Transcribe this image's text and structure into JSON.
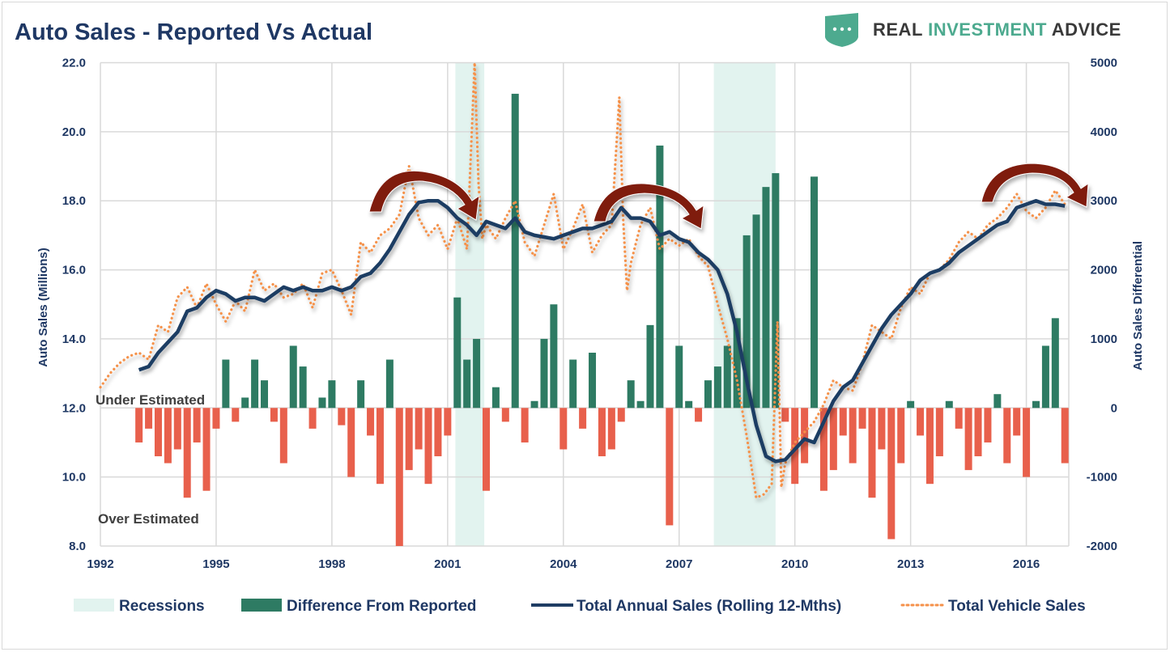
{
  "title": "Auto Sales - Reported Vs Actual",
  "logo": {
    "part1": "REAL ",
    "part2": "INVESTMENT",
    "part3": " ADVICE",
    "accent": "#4daa8f",
    "dark": "#3a3a3a"
  },
  "colors": {
    "recession": "#e2f3ef",
    "diff_pos": "#2e7b63",
    "diff_neg": "#e8604c",
    "annual": "#1f3d63",
    "vehicle": "#f5914a",
    "arrow": "#7f1a10",
    "axis_text": "#1f3864"
  },
  "annotations": {
    "under": "Under Estimated",
    "over": "Over Estimated"
  },
  "chart_data": {
    "type": "bar+line",
    "title": "Auto Sales - Reported Vs Actual",
    "xlabel": "",
    "ylabel": "Auto Sales (Millions)",
    "y2label": "Auto Sales Differential",
    "xlim": [
      1992,
      2017.1
    ],
    "ylim": [
      8,
      22
    ],
    "y2lim": [
      -2000,
      5000
    ],
    "x_ticks": [
      "1992",
      "1995",
      "1998",
      "2001",
      "2004",
      "2007",
      "2010",
      "2013",
      "2016"
    ],
    "y_ticks": [
      "8.0",
      "10.0",
      "12.0",
      "14.0",
      "16.0",
      "18.0",
      "20.0",
      "22.0"
    ],
    "y2_ticks": [
      "-2000",
      "-1000",
      "0",
      "1000",
      "2000",
      "3000",
      "4000",
      "5000"
    ],
    "grid": true,
    "legend_position": "bottom",
    "legend": [
      "Recessions",
      "Difference From Reported",
      "Total Annual Sales (Rolling 12-Mths)",
      "Total Vehicle Sales"
    ],
    "recessions": [
      [
        2001.2,
        2001.95
      ],
      [
        2007.9,
        2009.5
      ]
    ],
    "difference": {
      "name": "Difference From Reported",
      "axis": "right",
      "x": [
        1993.0,
        1993.25,
        1993.5,
        1993.75,
        1994.0,
        1994.25,
        1994.5,
        1994.75,
        1995.0,
        1995.25,
        1995.5,
        1995.75,
        1996.0,
        1996.25,
        1996.5,
        1996.75,
        1997.0,
        1997.25,
        1997.5,
        1997.75,
        1998.0,
        1998.25,
        1998.5,
        1998.75,
        1999.0,
        1999.25,
        1999.5,
        1999.75,
        2000.0,
        2000.25,
        2000.5,
        2000.75,
        2001.0,
        2001.25,
        2001.5,
        2001.75,
        2002.0,
        2002.25,
        2002.5,
        2002.75,
        2003.0,
        2003.25,
        2003.5,
        2003.75,
        2004.0,
        2004.25,
        2004.5,
        2004.75,
        2005.0,
        2005.25,
        2005.5,
        2005.75,
        2006.0,
        2006.25,
        2006.5,
        2006.75,
        2007.0,
        2007.25,
        2007.5,
        2007.75,
        2008.0,
        2008.25,
        2008.5,
        2008.75,
        2009.0,
        2009.25,
        2009.5,
        2009.75,
        2010.0,
        2010.25,
        2010.5,
        2010.75,
        2011.0,
        2011.25,
        2011.5,
        2011.75,
        2012.0,
        2012.25,
        2012.5,
        2012.75,
        2013.0,
        2013.25,
        2013.5,
        2013.75,
        2014.0,
        2014.25,
        2014.5,
        2014.75,
        2015.0,
        2015.25,
        2015.5,
        2015.75,
        2016.0,
        2016.25,
        2016.5,
        2016.75,
        2017.0
      ],
      "values": [
        -500,
        -300,
        -700,
        -800,
        -600,
        -1300,
        -500,
        -1200,
        -300,
        700,
        -200,
        150,
        700,
        400,
        -200,
        -800,
        900,
        600,
        -300,
        150,
        400,
        -250,
        -1000,
        400,
        -400,
        -1100,
        700,
        -2000,
        -900,
        -600,
        -1100,
        -700,
        -400,
        1600,
        700,
        1000,
        -1200,
        300,
        -200,
        4550,
        -500,
        100,
        1000,
        1500,
        -600,
        700,
        -300,
        800,
        -700,
        -600,
        -200,
        400,
        100,
        1200,
        3800,
        -1700,
        900,
        100,
        -200,
        400,
        600,
        900,
        1300,
        2500,
        2800,
        3200,
        3400,
        -200,
        -1100,
        -800,
        3350,
        -1200,
        -900,
        -400,
        -800,
        -300,
        -1300,
        -600,
        -1900,
        -800,
        100,
        -400,
        -1100,
        -700,
        100,
        -300,
        -900,
        -700,
        -500,
        200,
        -800,
        -400,
        -1000,
        100,
        900,
        1300,
        -800
      ]
    },
    "annual": {
      "name": "Total Annual Sales (Rolling 12-Mths)",
      "axis": "left",
      "x": [
        1993.0,
        1993.25,
        1993.5,
        1993.75,
        1994.0,
        1994.25,
        1994.5,
        1994.75,
        1995.0,
        1995.25,
        1995.5,
        1995.75,
        1996.0,
        1996.25,
        1996.5,
        1996.75,
        1997.0,
        1997.25,
        1997.5,
        1997.75,
        1998.0,
        1998.25,
        1998.5,
        1998.75,
        1999.0,
        1999.25,
        1999.5,
        1999.75,
        2000.0,
        2000.25,
        2000.5,
        2000.75,
        2001.0,
        2001.25,
        2001.5,
        2001.75,
        2002.0,
        2002.25,
        2002.5,
        2002.75,
        2003.0,
        2003.25,
        2003.5,
        2003.75,
        2004.0,
        2004.25,
        2004.5,
        2004.75,
        2005.0,
        2005.25,
        2005.5,
        2005.75,
        2006.0,
        2006.25,
        2006.5,
        2006.75,
        2007.0,
        2007.25,
        2007.5,
        2007.75,
        2008.0,
        2008.25,
        2008.5,
        2008.75,
        2009.0,
        2009.25,
        2009.5,
        2009.75,
        2010.0,
        2010.25,
        2010.5,
        2010.75,
        2011.0,
        2011.25,
        2011.5,
        2011.75,
        2012.0,
        2012.25,
        2012.5,
        2012.75,
        2013.0,
        2013.25,
        2013.5,
        2013.75,
        2014.0,
        2014.25,
        2014.5,
        2014.75,
        2015.0,
        2015.25,
        2015.5,
        2015.75,
        2016.0,
        2016.25,
        2016.5,
        2016.75,
        2017.0
      ],
      "values": [
        13.1,
        13.2,
        13.6,
        13.9,
        14.2,
        14.8,
        14.9,
        15.2,
        15.4,
        15.3,
        15.1,
        15.2,
        15.2,
        15.1,
        15.3,
        15.5,
        15.4,
        15.5,
        15.4,
        15.4,
        15.5,
        15.4,
        15.5,
        15.8,
        15.9,
        16.2,
        16.6,
        17.1,
        17.6,
        17.95,
        18.0,
        18.0,
        17.8,
        17.5,
        17.3,
        17.0,
        17.4,
        17.3,
        17.2,
        17.5,
        17.1,
        17.0,
        16.95,
        16.9,
        17.0,
        17.1,
        17.2,
        17.2,
        17.3,
        17.4,
        17.8,
        17.5,
        17.5,
        17.4,
        17.0,
        17.1,
        16.9,
        16.8,
        16.5,
        16.3,
        16.0,
        15.3,
        14.2,
        12.8,
        11.5,
        10.6,
        10.45,
        10.5,
        10.8,
        11.1,
        11.0,
        11.6,
        12.2,
        12.6,
        12.8,
        13.3,
        13.8,
        14.3,
        14.7,
        15.0,
        15.3,
        15.7,
        15.9,
        16.0,
        16.2,
        16.5,
        16.7,
        16.9,
        17.1,
        17.3,
        17.4,
        17.8,
        17.9,
        18.0,
        17.9,
        17.9,
        17.85
      ]
    },
    "vehicle": {
      "name": "Total Vehicle Sales",
      "axis": "left",
      "x": [
        1992.0,
        1992.25,
        1992.5,
        1992.75,
        1993.0,
        1993.25,
        1993.5,
        1993.75,
        1994.0,
        1994.25,
        1994.5,
        1994.75,
        1995.0,
        1995.25,
        1995.5,
        1995.75,
        1996.0,
        1996.25,
        1996.5,
        1996.75,
        1997.0,
        1997.25,
        1997.5,
        1997.75,
        1998.0,
        1998.25,
        1998.5,
        1998.75,
        1999.0,
        1999.25,
        1999.5,
        1999.75,
        2000.0,
        2000.25,
        2000.5,
        2000.75,
        2001.0,
        2001.25,
        2001.5,
        2001.7,
        2001.8,
        2001.9,
        2002.0,
        2002.25,
        2002.5,
        2002.75,
        2003.0,
        2003.25,
        2003.5,
        2003.75,
        2004.0,
        2004.25,
        2004.5,
        2004.75,
        2005.0,
        2005.25,
        2005.45,
        2005.55,
        2005.65,
        2005.75,
        2006.0,
        2006.25,
        2006.5,
        2006.75,
        2007.0,
        2007.25,
        2007.5,
        2007.75,
        2008.0,
        2008.25,
        2008.5,
        2008.75,
        2009.0,
        2009.2,
        2009.4,
        2009.55,
        2009.65,
        2009.75,
        2010.0,
        2010.25,
        2010.5,
        2010.75,
        2011.0,
        2011.25,
        2011.5,
        2011.75,
        2012.0,
        2012.25,
        2012.5,
        2012.75,
        2013.0,
        2013.25,
        2013.5,
        2013.75,
        2014.0,
        2014.25,
        2014.5,
        2014.75,
        2015.0,
        2015.25,
        2015.5,
        2015.75,
        2016.0,
        2016.25,
        2016.5,
        2016.75,
        2017.0
      ],
      "values": [
        12.6,
        13.0,
        13.3,
        13.5,
        13.6,
        13.4,
        14.4,
        14.2,
        15.2,
        15.5,
        14.9,
        15.6,
        15.0,
        14.5,
        15.1,
        14.8,
        16.0,
        15.4,
        15.6,
        15.2,
        15.3,
        15.6,
        14.9,
        15.9,
        16.0,
        15.4,
        14.7,
        16.8,
        16.5,
        17.0,
        17.2,
        17.6,
        19.0,
        17.5,
        17.0,
        17.3,
        16.6,
        17.5,
        16.6,
        22.0,
        18.5,
        16.9,
        17.3,
        16.9,
        17.5,
        18.0,
        16.8,
        16.4,
        17.3,
        18.2,
        16.6,
        17.2,
        17.9,
        16.5,
        17.0,
        17.3,
        21.0,
        17.5,
        15.4,
        16.2,
        17.3,
        17.8,
        16.6,
        16.9,
        16.7,
        16.9,
        16.4,
        16.1,
        15.0,
        14.0,
        12.8,
        11.2,
        9.4,
        9.5,
        9.8,
        14.5,
        9.7,
        10.4,
        11.0,
        11.3,
        11.6,
        12.1,
        12.8,
        12.6,
        12.5,
        13.3,
        14.4,
        14.2,
        14.0,
        14.9,
        15.5,
        15.3,
        15.9,
        16.0,
        16.3,
        16.8,
        17.1,
        16.9,
        17.3,
        17.5,
        17.8,
        18.2,
        17.7,
        17.5,
        17.8,
        18.3,
        17.9
      ]
    }
  }
}
